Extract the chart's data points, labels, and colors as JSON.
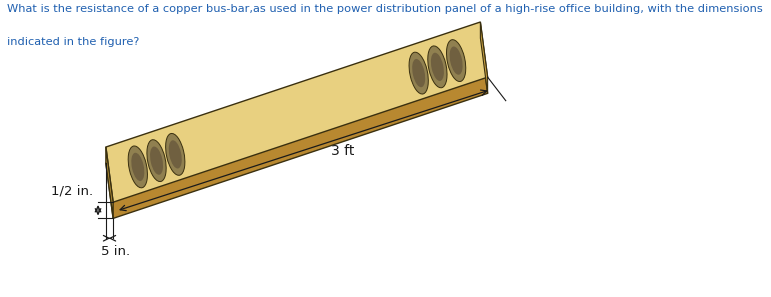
{
  "question_text_line1": "What is the resistance of a copper bus-bar,as used in the power distribution panel of a high-rise office building, with the dimensions",
  "question_text_line2": "indicated in the figure?",
  "question_color": "#2060b0",
  "label_3ft": "3 ft",
  "label_half_in": "1/2 in.",
  "label_5in": "5 in.",
  "bar_top_color": "#e8d080",
  "bar_front_color": "#c8a040",
  "bar_bottom_color": "#b88830",
  "bar_right_color": "#c8a040",
  "bar_edge_color": "#3a3010",
  "hole_outer_color": "#908050",
  "hole_inner_color": "#706040",
  "bg_color": "#ffffff",
  "text_color": "#1a1a1a",
  "figsize": [
    7.71,
    2.97
  ],
  "dpi": 100
}
